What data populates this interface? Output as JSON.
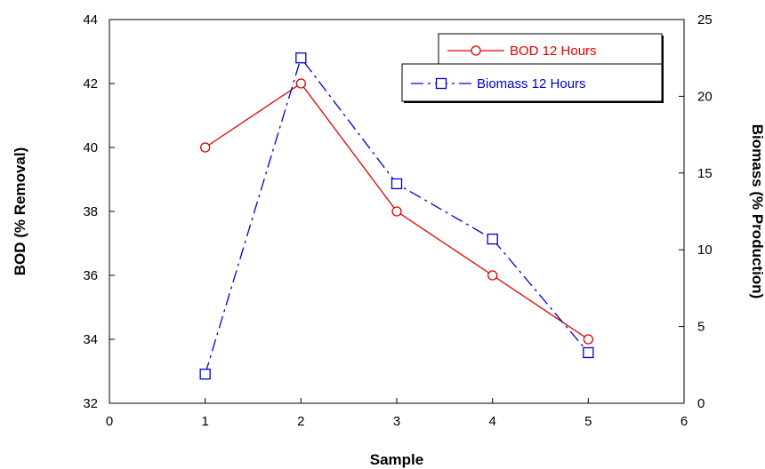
{
  "chart_data": {
    "type": "line",
    "xlabel": "Sample",
    "ylabel_left": "BOD (% Removal)",
    "ylabel_right": "Biomass (% Production)",
    "xlim": [
      0,
      6
    ],
    "x_ticks": [
      "0",
      "1",
      "2",
      "3",
      "4",
      "5",
      "6"
    ],
    "ylim_left": [
      32,
      44
    ],
    "y_left_ticks": [
      "32",
      "34",
      "36",
      "38",
      "40",
      "42",
      "44"
    ],
    "ylim_right": [
      0,
      25
    ],
    "y_right_ticks": [
      "0",
      "5",
      "10",
      "15",
      "20",
      "25"
    ],
    "grid": false,
    "legend_position": "top-right",
    "series": [
      {
        "name": "BOD 12 Hours",
        "axis": "left",
        "color": "#e00000",
        "marker": "circle",
        "line_style": "solid",
        "x": [
          1,
          2,
          3,
          4,
          5
        ],
        "y": [
          40,
          42,
          38,
          36,
          34
        ]
      },
      {
        "name": "Biomass 12 Hours",
        "axis": "right",
        "color": "#0000cc",
        "marker": "square",
        "line_style": "dash-dot",
        "x": [
          1,
          2,
          3,
          4,
          5
        ],
        "y": [
          1.9,
          22.5,
          14.3,
          10.7,
          3.3
        ]
      }
    ]
  }
}
